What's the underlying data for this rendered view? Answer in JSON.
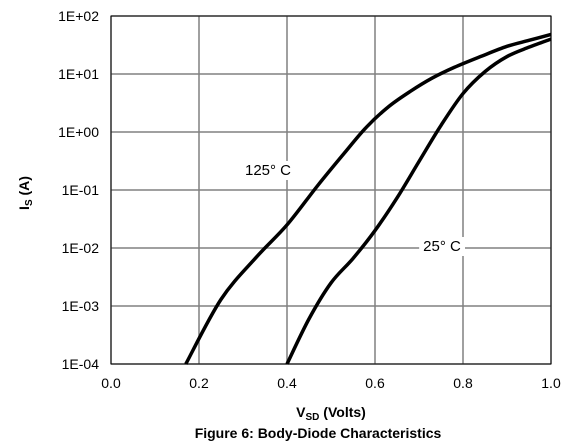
{
  "chart_data": {
    "type": "line",
    "title": "",
    "caption": "Figure 6: Body-Diode Characteristics",
    "xlabel": {
      "main": "V",
      "sub": "SD",
      "rest": " (Volts)"
    },
    "ylabel": {
      "main": "I",
      "sub": "S",
      "rest": " (A)"
    },
    "xlim": [
      0.0,
      1.0
    ],
    "ylim": [
      0.0001,
      100
    ],
    "y_scale": "log",
    "grid": true,
    "x_ticks": [
      "0.0",
      "0.2",
      "0.4",
      "0.6",
      "0.8",
      "1.0"
    ],
    "x_tick_values": [
      0.0,
      0.2,
      0.4,
      0.6,
      0.8,
      1.0
    ],
    "y_ticks": [
      "1E-04",
      "1E-03",
      "1E-02",
      "1E-01",
      "1E+00",
      "1E+01",
      "1E+02"
    ],
    "y_tick_values": [
      0.0001,
      0.001,
      0.01,
      0.1,
      1,
      10,
      100
    ],
    "series": [
      {
        "name": "125° C",
        "label_text": "125° C",
        "color": "#000000",
        "x": [
          0.17,
          0.25,
          0.33,
          0.4,
          0.47,
          0.53,
          0.58,
          0.63,
          0.68,
          0.73,
          0.78,
          0.84,
          0.9,
          0.95,
          1.0
        ],
        "y": [
          0.0001,
          0.0013,
          0.0069,
          0.025,
          0.12,
          0.43,
          1.2,
          2.7,
          5.0,
          8.5,
          13,
          20,
          30,
          38,
          48
        ]
      },
      {
        "name": "25° C",
        "label_text": "25° C",
        "color": "#000000",
        "x": [
          0.4,
          0.45,
          0.5,
          0.55,
          0.6,
          0.65,
          0.7,
          0.75,
          0.8,
          0.85,
          0.9,
          0.95,
          1.0
        ],
        "y": [
          0.0001,
          0.0006,
          0.0025,
          0.0066,
          0.02,
          0.073,
          0.31,
          1.3,
          4.6,
          11,
          20,
          29,
          40
        ]
      }
    ],
    "colors": {
      "grid": "#808080",
      "line": "#000000",
      "background": "#ffffff"
    }
  }
}
